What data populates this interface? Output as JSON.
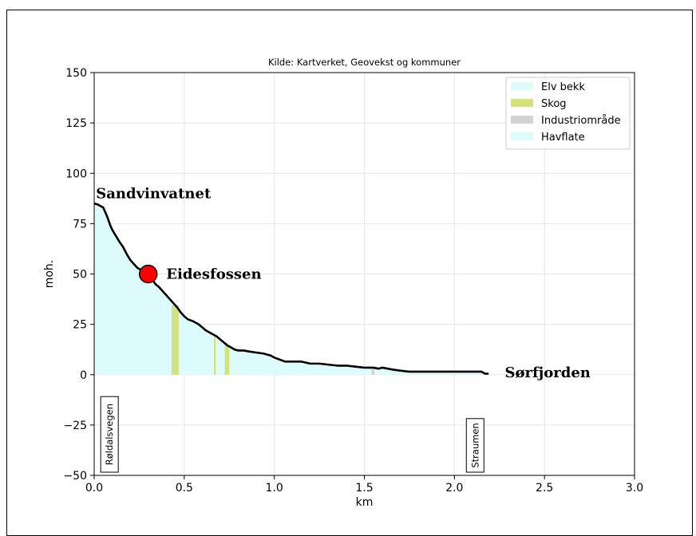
{
  "chart_data": {
    "type": "area",
    "title": "Kilde: Kartverket, Geovekst og kommuner",
    "xlabel": "km",
    "ylabel": "moh.",
    "xlim": [
      0.0,
      3.0
    ],
    "ylim": [
      -50,
      150
    ],
    "xticks": [
      0.0,
      0.5,
      1.0,
      1.5,
      2.0,
      2.5,
      3.0
    ],
    "xtick_labels": [
      "0.0",
      "0.5",
      "1.0",
      "1.5",
      "2.0",
      "2.5",
      "3.0"
    ],
    "yticks": [
      -50,
      -25,
      0,
      25,
      50,
      75,
      100,
      125,
      150
    ],
    "ytick_labels": [
      "−50",
      "−25",
      "0",
      "25",
      "50",
      "75",
      "100",
      "125",
      "150"
    ],
    "grid": true,
    "legend": {
      "placement": "top-right",
      "entries": [
        {
          "label": "Elv bekk",
          "color": "#ddfbfb"
        },
        {
          "label": "Skog",
          "color": "#d3e27a"
        },
        {
          "label": "Industriområde",
          "color": "#d3d3d3"
        },
        {
          "label": "Havflate",
          "color": "#ddfbfb"
        }
      ]
    },
    "profile": {
      "x": [
        0.0,
        0.02,
        0.05,
        0.07,
        0.09,
        0.1,
        0.12,
        0.14,
        0.16,
        0.18,
        0.2,
        0.22,
        0.24,
        0.26,
        0.28,
        0.3,
        0.32,
        0.34,
        0.36,
        0.38,
        0.4,
        0.42,
        0.44,
        0.46,
        0.48,
        0.5,
        0.52,
        0.55,
        0.58,
        0.6,
        0.62,
        0.65,
        0.68,
        0.7,
        0.72,
        0.74,
        0.76,
        0.78,
        0.8,
        0.83,
        0.86,
        0.9,
        0.94,
        0.98,
        1.0,
        1.03,
        1.06,
        1.1,
        1.15,
        1.2,
        1.25,
        1.3,
        1.35,
        1.4,
        1.45,
        1.5,
        1.55,
        1.58,
        1.6,
        1.63,
        1.66,
        1.7,
        1.75,
        1.8,
        1.85,
        1.9,
        1.95,
        2.0,
        2.05,
        2.1,
        2.15,
        2.17,
        2.19
      ],
      "y": [
        85,
        84.5,
        83,
        79,
        74,
        72,
        69,
        66,
        63.5,
        60,
        57,
        55,
        53,
        52,
        50.5,
        49.5,
        47.5,
        45,
        43.5,
        41.5,
        39.5,
        37.5,
        35.5,
        33.5,
        31,
        29,
        27.5,
        26.5,
        25,
        23.5,
        22,
        20.5,
        19,
        17.5,
        16,
        14.5,
        13.5,
        12.5,
        12,
        12,
        11.5,
        11,
        10.5,
        9.5,
        8.5,
        7.5,
        6.5,
        6.5,
        6.5,
        5.5,
        5.5,
        5.0,
        4.5,
        4.5,
        4.0,
        3.5,
        3.5,
        3.0,
        3.5,
        3.0,
        2.5,
        2.0,
        1.5,
        1.5,
        1.5,
        1.5,
        1.5,
        1.5,
        1.5,
        1.5,
        1.5,
        0.5,
        0.5
      ]
    },
    "bands": [
      {
        "type": "Skog",
        "x0": 0.43,
        "x1": 0.47
      },
      {
        "type": "Skog",
        "x0": 0.665,
        "x1": 0.675
      },
      {
        "type": "Skog",
        "x0": 0.725,
        "x1": 0.75
      },
      {
        "type": "Industriområde",
        "x0": 1.54,
        "x1": 1.555
      }
    ],
    "annotations": [
      {
        "text": "Sandvinvatnet",
        "x": 0.01,
        "y": 90
      },
      {
        "text": "Eidesfossen",
        "x": 0.4,
        "y": 50
      },
      {
        "text": "Sørfjorden",
        "x": 2.28,
        "y": 1
      }
    ],
    "marker": {
      "label": "Eidesfossen",
      "x": 0.3,
      "y": 50,
      "color": "#ff0000"
    },
    "road_labels": [
      {
        "text": "Røldalsvegen",
        "x": 0.085
      },
      {
        "text": "Straumen",
        "x": 2.115
      }
    ]
  }
}
